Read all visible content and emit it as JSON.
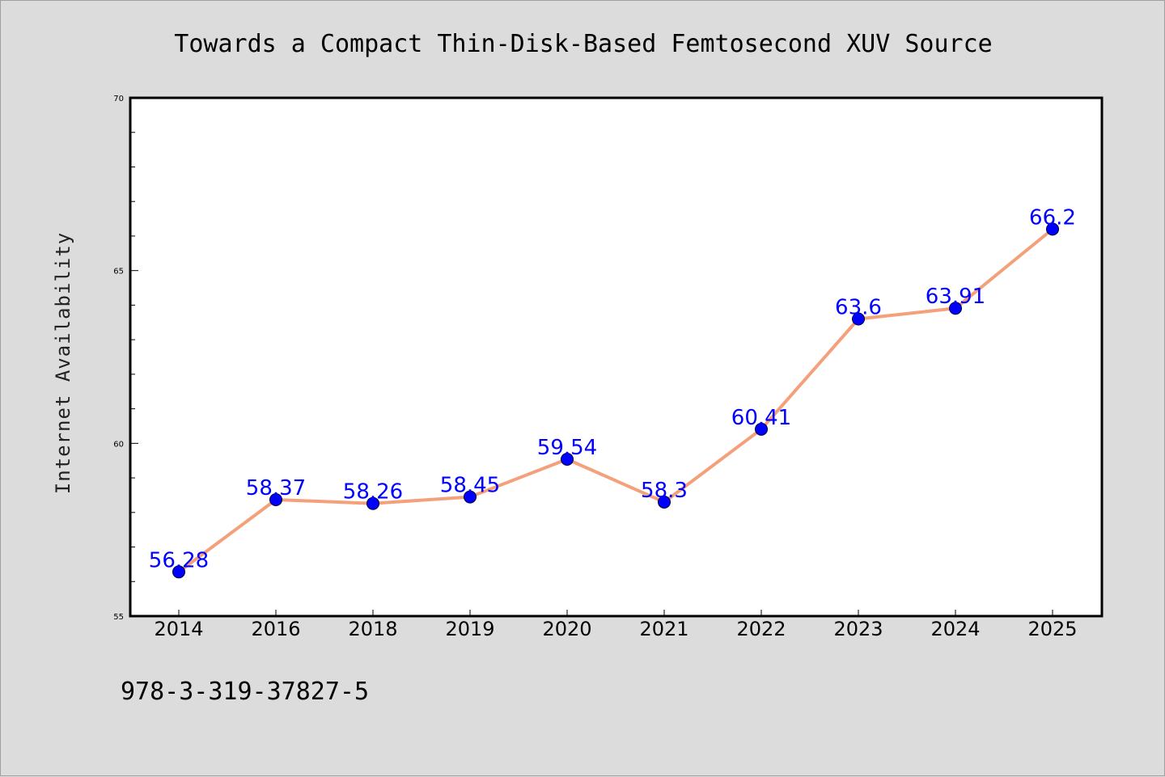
{
  "footer": {
    "isbn": "978-3-319-37827-5"
  },
  "chart_data": {
    "type": "line",
    "title": "Towards a Compact Thin-Disk-Based Femtosecond XUV Source",
    "xlabel": "",
    "ylabel": "Internet Availability",
    "categories": [
      "2014",
      "2016",
      "2018",
      "2019",
      "2020",
      "2021",
      "2022",
      "2023",
      "2024",
      "2025"
    ],
    "series": [
      {
        "values": [
          56.28,
          58.37,
          58.26,
          58.45,
          59.54,
          58.3,
          60.41,
          63.6,
          63.91,
          66.2
        ],
        "data_labels": [
          "56.28",
          "58.37",
          "58.26",
          "58.45",
          "59.54",
          "58.3",
          "60.41",
          "63.6",
          "63.91",
          "66.2"
        ],
        "line_color": "#f4a07a",
        "marker_color": "#0000ff"
      }
    ],
    "ylim": [
      55,
      70
    ],
    "y_ticks": [
      55,
      60,
      65,
      70
    ],
    "y_tick_labels": [
      "55",
      "60",
      "65",
      "70"
    ],
    "grid": false,
    "legend": "none",
    "colors": {
      "background": "#dcdcdc",
      "plot_background": "#ffffff",
      "axis": "#000000",
      "data_label": "#0000ff"
    }
  }
}
